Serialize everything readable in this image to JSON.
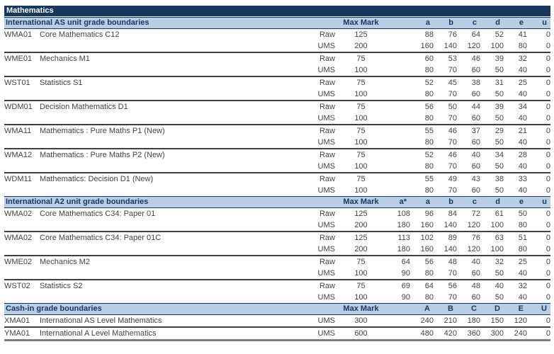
{
  "title": "Mathematics",
  "colors": {
    "title_bar_bg": "#17375d",
    "title_bar_text": "#ffffff",
    "section_band_bg": "#b9cde5",
    "section_text": "#17375d",
    "body_text": "#434343",
    "separator_line": "#404040",
    "bottom_line": "#808080"
  },
  "max_mark_label": "Max Mark",
  "sections": [
    {
      "header": "International AS unit grade boundaries",
      "grade_cols": [
        "",
        "a",
        "b",
        "c",
        "d",
        "e",
        "u"
      ],
      "units": [
        {
          "code": "WMA01",
          "name": "Core Mathematics C12",
          "rows": [
            {
              "type": "Raw",
              "max": "125",
              "values": [
                "",
                "88",
                "76",
                "64",
                "52",
                "41",
                "0"
              ]
            },
            {
              "type": "UMS",
              "max": "200",
              "values": [
                "",
                "160",
                "140",
                "120",
                "100",
                "80",
                "0"
              ]
            }
          ]
        },
        {
          "code": "WME01",
          "name": "Mechanics M1",
          "rows": [
            {
              "type": "Raw",
              "max": "75",
              "values": [
                "",
                "60",
                "53",
                "46",
                "39",
                "32",
                "0"
              ]
            },
            {
              "type": "UMS",
              "max": "100",
              "values": [
                "",
                "80",
                "70",
                "60",
                "50",
                "40",
                "0"
              ]
            }
          ]
        },
        {
          "code": "WST01",
          "name": "Statistics S1",
          "rows": [
            {
              "type": "Raw",
              "max": "75",
              "values": [
                "",
                "52",
                "45",
                "38",
                "31",
                "25",
                "0"
              ]
            },
            {
              "type": "UMS",
              "max": "100",
              "values": [
                "",
                "80",
                "70",
                "60",
                "50",
                "40",
                "0"
              ]
            }
          ]
        },
        {
          "code": "WDM01",
          "name": "Decision Mathematics D1",
          "rows": [
            {
              "type": "Raw",
              "max": "75",
              "values": [
                "",
                "56",
                "50",
                "44",
                "39",
                "34",
                "0"
              ]
            },
            {
              "type": "UMS",
              "max": "100",
              "values": [
                "",
                "80",
                "70",
                "60",
                "50",
                "40",
                "0"
              ]
            }
          ]
        },
        {
          "code": "WMA11",
          "name": "Mathematics : Pure Maths P1 (New)",
          "rows": [
            {
              "type": "Raw",
              "max": "75",
              "values": [
                "",
                "55",
                "46",
                "37",
                "29",
                "21",
                "0"
              ]
            },
            {
              "type": "UMS",
              "max": "100",
              "values": [
                "",
                "80",
                "70",
                "60",
                "50",
                "40",
                "0"
              ]
            }
          ]
        },
        {
          "code": "WMA12",
          "name": "Mathematics : Pure Maths P2 (New)",
          "rows": [
            {
              "type": "Raw",
              "max": "75",
              "values": [
                "",
                "52",
                "46",
                "40",
                "34",
                "28",
                "0"
              ]
            },
            {
              "type": "UMS",
              "max": "100",
              "values": [
                "",
                "80",
                "70",
                "60",
                "50",
                "40",
                "0"
              ]
            }
          ]
        },
        {
          "code": "WDM11",
          "name": "Mathematics: Decision D1 (New)",
          "rows": [
            {
              "type": "Raw",
              "max": "75",
              "values": [
                "",
                "55",
                "49",
                "43",
                "38",
                "33",
                "0"
              ]
            },
            {
              "type": "UMS",
              "max": "100",
              "values": [
                "",
                "80",
                "70",
                "60",
                "50",
                "40",
                "0"
              ]
            }
          ]
        }
      ]
    },
    {
      "header": "International A2 unit grade boundaries",
      "grade_cols": [
        "a*",
        "a",
        "b",
        "c",
        "d",
        "e",
        "u"
      ],
      "units": [
        {
          "code": "WMA02",
          "name": "Core Mathematics C34: Paper 01",
          "rows": [
            {
              "type": "Raw",
              "max": "125",
              "values": [
                "108",
                "96",
                "84",
                "72",
                "61",
                "50",
                "0"
              ]
            },
            {
              "type": "UMS",
              "max": "200",
              "values": [
                "180",
                "160",
                "140",
                "120",
                "100",
                "80",
                "0"
              ]
            }
          ]
        },
        {
          "code": "WMA02",
          "name": "Core Mathematics C34: Paper 01C",
          "rows": [
            {
              "type": "Raw",
              "max": "125",
              "values": [
                "113",
                "102",
                "89",
                "76",
                "63",
                "51",
                "0"
              ]
            },
            {
              "type": "UMS",
              "max": "200",
              "values": [
                "180",
                "160",
                "140",
                "120",
                "100",
                "80",
                "0"
              ]
            }
          ]
        },
        {
          "code": "WME02",
          "name": "Mechanics M2",
          "rows": [
            {
              "type": "Raw",
              "max": "75",
              "values": [
                "64",
                "56",
                "48",
                "40",
                "32",
                "25",
                "0"
              ]
            },
            {
              "type": "UMS",
              "max": "100",
              "values": [
                "90",
                "80",
                "70",
                "60",
                "50",
                "40",
                "0"
              ]
            }
          ]
        },
        {
          "code": "WST02",
          "name": "Statistics S2",
          "rows": [
            {
              "type": "Raw",
              "max": "75",
              "values": [
                "69",
                "64",
                "56",
                "48",
                "40",
                "32",
                "0"
              ]
            },
            {
              "type": "UMS",
              "max": "100",
              "values": [
                "90",
                "80",
                "70",
                "60",
                "50",
                "40",
                "0"
              ]
            }
          ]
        }
      ]
    },
    {
      "header": "Cash-in grade boundaries",
      "grade_cols": [
        "",
        "A",
        "B",
        "C",
        "D",
        "E",
        "U"
      ],
      "units": [
        {
          "code": "XMA01",
          "name": "International AS Level Mathematics",
          "rows": [
            {
              "type": "UMS",
              "max": "300",
              "values": [
                "",
                "240",
                "210",
                "180",
                "150",
                "120",
                "0"
              ]
            }
          ]
        },
        {
          "code": "YMA01",
          "name": "International A Level Mathematics",
          "rows": [
            {
              "type": "UMS",
              "max": "600",
              "values": [
                "",
                "480",
                "420",
                "360",
                "300",
                "240",
                "0"
              ]
            }
          ]
        }
      ]
    }
  ]
}
